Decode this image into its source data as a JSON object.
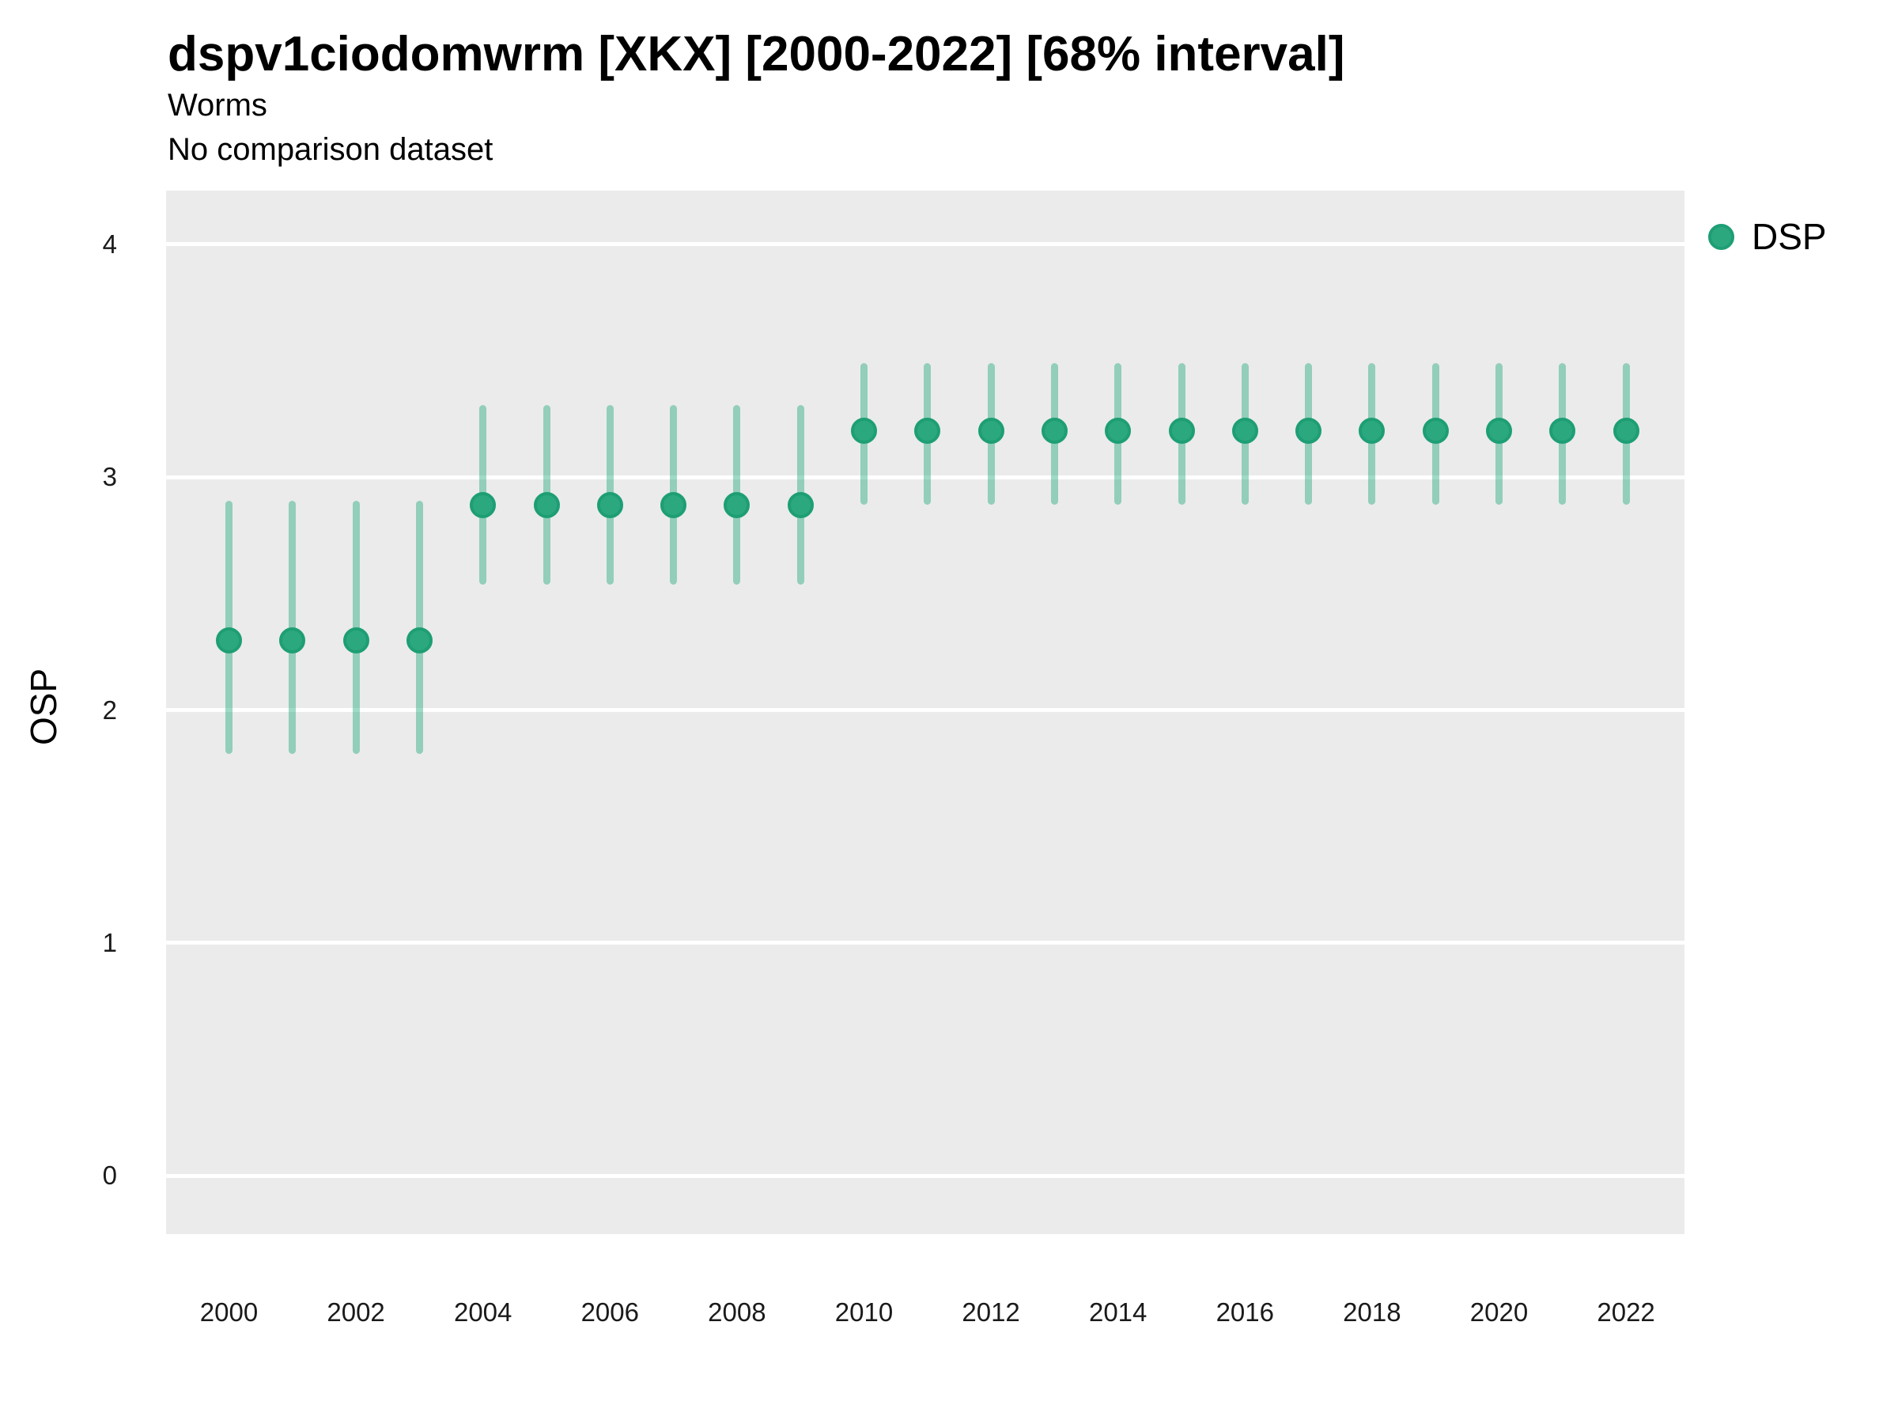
{
  "header": {
    "title": "dspv1ciodomwrm [XKX] [2000-2022] [68% interval]",
    "subtitle": "Worms",
    "note": "No comparison dataset"
  },
  "legend": {
    "label": "DSP"
  },
  "colors": {
    "point_fill": "#2ca87e",
    "point_border": "#1e9e75",
    "interval_base": "#17a678",
    "interval_alpha": 0.42,
    "panel_bg": "#ebebeb",
    "grid": "#ffffff",
    "tick_text": "#1a1a1a"
  },
  "chart_data": {
    "type": "scatter",
    "subtype": "pointrange",
    "title": "dspv1ciodomwrm [XKX] [2000-2022] [68% interval]",
    "subtitle": "Worms",
    "annotation": "No comparison dataset",
    "xlabel": "",
    "ylabel": "OSP",
    "legend_label": "DSP",
    "legend_position": "right-top",
    "grid": "horizontal-major-only",
    "interval_level": "68%",
    "x": [
      2000,
      2001,
      2002,
      2003,
      2004,
      2005,
      2006,
      2007,
      2008,
      2009,
      2010,
      2011,
      2012,
      2013,
      2014,
      2015,
      2016,
      2017,
      2018,
      2019,
      2020,
      2021,
      2022
    ],
    "series": [
      {
        "name": "DSP",
        "color": "#1b9e77",
        "values": [
          2.3,
          2.3,
          2.3,
          2.3,
          2.88,
          2.88,
          2.88,
          2.88,
          2.88,
          2.88,
          3.2,
          3.2,
          3.2,
          3.2,
          3.2,
          3.2,
          3.2,
          3.2,
          3.2,
          3.2,
          3.2,
          3.2,
          3.2
        ],
        "lo": [
          1.81,
          1.81,
          1.81,
          1.81,
          2.54,
          2.54,
          2.54,
          2.54,
          2.54,
          2.54,
          2.88,
          2.88,
          2.88,
          2.88,
          2.88,
          2.88,
          2.88,
          2.88,
          2.88,
          2.88,
          2.88,
          2.88,
          2.88
        ],
        "hi": [
          2.9,
          2.9,
          2.9,
          2.9,
          3.31,
          3.31,
          3.31,
          3.31,
          3.31,
          3.31,
          3.49,
          3.49,
          3.49,
          3.49,
          3.49,
          3.49,
          3.49,
          3.49,
          3.49,
          3.49,
          3.49,
          3.49,
          3.49
        ]
      }
    ],
    "y_ticks": [
      0,
      1,
      2,
      3,
      4
    ],
    "x_ticks": [
      2000,
      2002,
      2004,
      2006,
      2008,
      2010,
      2012,
      2014,
      2016,
      2018,
      2020,
      2022
    ],
    "ylim": [
      -0.25,
      4.23
    ]
  }
}
